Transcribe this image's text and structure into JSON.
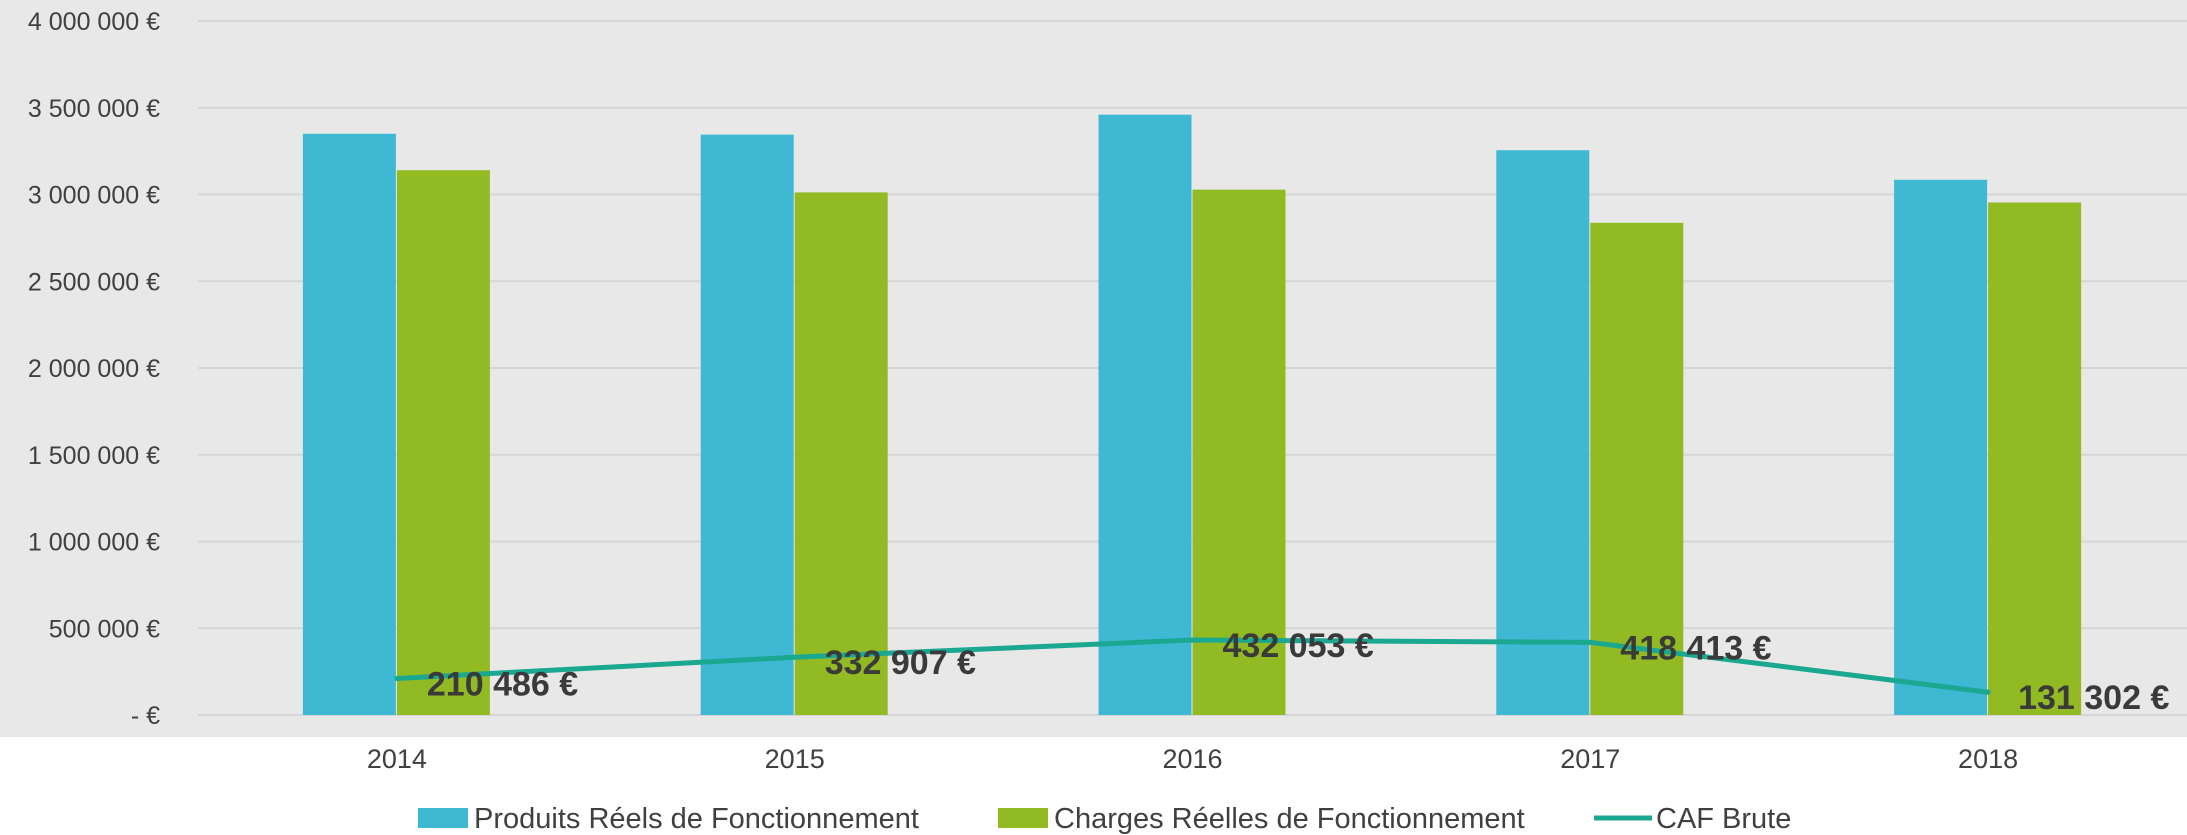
{
  "colors": {
    "plot_background": "#e8e8e8",
    "gridline": "#d6d6d6",
    "produits": "#3fb8d4",
    "charges": "#92ba22",
    "caf": "#1aa890"
  },
  "chart_data": {
    "type": "bar",
    "categories": [
      "2014",
      "2015",
      "2016",
      "2017",
      "2018"
    ],
    "y_ticks": [
      {
        "value": 0,
        "label": "-  €"
      },
      {
        "value": 500000,
        "label": "500 000 €"
      },
      {
        "value": 1000000,
        "label": "1 000 000 €"
      },
      {
        "value": 1500000,
        "label": "1 500 000 €"
      },
      {
        "value": 2000000,
        "label": "2 000 000 €"
      },
      {
        "value": 2500000,
        "label": "2 500 000 €"
      },
      {
        "value": 3000000,
        "label": "3 000 000 €"
      },
      {
        "value": 3500000,
        "label": "3 500 000 €"
      },
      {
        "value": 4000000,
        "label": "4 000 000 €"
      }
    ],
    "ylim": [
      0,
      4000000
    ],
    "grid": true,
    "legend_position": "bottom",
    "series": [
      {
        "name": "Produits Réels de Fonctionnement",
        "type": "bar",
        "values": [
          3350000,
          3345000,
          3460000,
          3255000,
          3085000
        ]
      },
      {
        "name": "Charges Réelles de Fonctionnement",
        "type": "bar",
        "values": [
          3140000,
          3012000,
          3028000,
          2837000,
          2954000
        ]
      },
      {
        "name": "CAF Brute",
        "type": "line",
        "values": [
          210486,
          332907,
          432053,
          418413,
          131302
        ],
        "data_labels": [
          "210 486 €",
          "332 907 €",
          "432 053 €",
          "418 413 €",
          "131 302 €"
        ]
      }
    ]
  }
}
